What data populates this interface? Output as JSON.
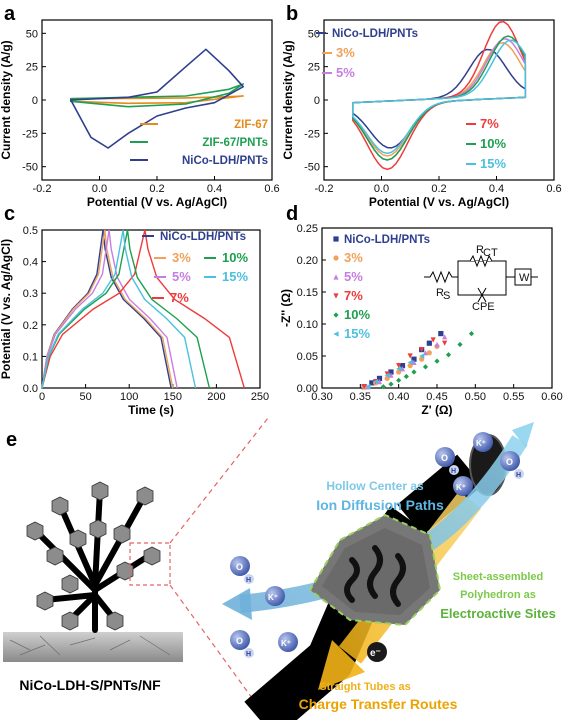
{
  "colors": {
    "navy": "#2f3f8f",
    "orange": "#f0a25a",
    "violet": "#c67ee0",
    "red": "#ee3b3b",
    "green": "#1ea050",
    "cyan": "#4cc0df",
    "zif": "#e58a1e"
  },
  "panels": {
    "a": {
      "label": "a",
      "xlabel": "Potential (V vs. Ag/AgCl)",
      "ylabel": "Current density (A/g)",
      "legend": [
        "ZIF-67",
        "ZIF-67/PNTs",
        "NiCo-LDH/PNTs"
      ]
    },
    "b": {
      "label": "b",
      "xlabel": "Potential (V vs. Ag/AgCl)",
      "ylabel": "Current density (A/g)",
      "legend": [
        "NiCo-LDH/PNTs",
        "3%",
        "5%",
        "7%",
        "10%",
        "15%"
      ]
    },
    "c": {
      "label": "c",
      "xlabel": "Time (s)",
      "ylabel": "Potential (V vs. Ag/AgCl)",
      "legend": [
        "NiCo-LDH/PNTs",
        "3%",
        "10%",
        "5%",
        "15%",
        "7%"
      ]
    },
    "d": {
      "label": "d",
      "xlabel": "Z' (Ω)",
      "ylabel": "-Z'' (Ω)",
      "legend": [
        "NiCo-LDH/PNTs",
        "3%",
        "5%",
        "7%",
        "10%",
        "15%"
      ],
      "circuit": {
        "rs": "R",
        "rs_sub": "S",
        "rct": "R",
        "rct_sub": "CT",
        "cpe": "CPE",
        "w": "W"
      }
    }
  },
  "chart_data": [
    {
      "type": "line",
      "title": "",
      "xlabel": "Potential (V vs. Ag/AgCl)",
      "ylabel": "Current density (A/g)",
      "xlim": [
        -0.2,
        0.6
      ],
      "ylim": [
        -60,
        60
      ],
      "xticks": [
        "-0.2",
        "0.0",
        "0.2",
        "0.4",
        "0.6"
      ],
      "yticks": [
        "-50",
        "-25",
        "0",
        "25",
        "50"
      ],
      "series": [
        {
          "name": "ZIF-67",
          "color": "#e58a1e",
          "anodic": [
            [
              -0.1,
              1
            ],
            [
              0.1,
              1.2
            ],
            [
              0.3,
              1.6
            ],
            [
              0.45,
              2.5
            ],
            [
              0.5,
              3
            ]
          ],
          "cathodic": [
            [
              0.5,
              3
            ],
            [
              0.3,
              -2
            ],
            [
              0.1,
              -2.5
            ],
            [
              -0.1,
              -1
            ]
          ]
        },
        {
          "name": "ZIF-67/PNTs",
          "color": "#1ea050",
          "anodic": [
            [
              -0.1,
              1
            ],
            [
              0.1,
              2
            ],
            [
              0.3,
              3
            ],
            [
              0.45,
              8
            ],
            [
              0.5,
              12
            ]
          ],
          "cathodic": [
            [
              0.5,
              12
            ],
            [
              0.45,
              5
            ],
            [
              0.3,
              -3
            ],
            [
              0.1,
              -5
            ],
            [
              -0.1,
              -1
            ]
          ]
        },
        {
          "name": "NiCo-LDH/PNTs",
          "color": "#2f3f8f",
          "anodic": [
            [
              -0.1,
              0
            ],
            [
              0.1,
              2
            ],
            [
              0.2,
              6
            ],
            [
              0.3,
              25
            ],
            [
              0.37,
              38
            ],
            [
              0.45,
              22
            ],
            [
              0.5,
              10
            ]
          ],
          "cathodic": [
            [
              0.5,
              10
            ],
            [
              0.4,
              -2
            ],
            [
              0.3,
              -6
            ],
            [
              0.2,
              -12
            ],
            [
              0.1,
              -25
            ],
            [
              0.03,
              -36
            ],
            [
              -0.03,
              -28
            ],
            [
              -0.1,
              0
            ]
          ]
        }
      ]
    },
    {
      "type": "line",
      "title": "",
      "xlabel": "Potential (V vs. Ag/AgCl)",
      "ylabel": "Current density (A/g)",
      "xlim": [
        -0.2,
        0.6
      ],
      "ylim": [
        -60,
        60
      ],
      "xticks": [
        "-0.2",
        "0.0",
        "0.2",
        "0.4",
        "0.6"
      ],
      "yticks": [
        "-50",
        "-25",
        "0",
        "25",
        "50"
      ],
      "series": [
        {
          "name": "NiCo-LDH/PNTs",
          "color": "#2f3f8f",
          "peak": [
            0.37,
            38
          ],
          "valley": [
            0.03,
            -36
          ]
        },
        {
          "name": "3%",
          "color": "#f0a25a",
          "peak": [
            0.42,
            43
          ],
          "valley": [
            0.02,
            -42
          ]
        },
        {
          "name": "5%",
          "color": "#c67ee0",
          "peak": [
            0.43,
            46
          ],
          "valley": [
            0.02,
            -45
          ]
        },
        {
          "name": "7%",
          "color": "#ee3b3b",
          "peak": [
            0.42,
            59
          ],
          "valley": [
            0.02,
            -52
          ]
        },
        {
          "name": "10%",
          "color": "#1ea050",
          "peak": [
            0.44,
            48
          ],
          "valley": [
            0.02,
            -45
          ]
        },
        {
          "name": "15%",
          "color": "#4cc0df",
          "peak": [
            0.45,
            45
          ],
          "valley": [
            0.02,
            -40
          ]
        }
      ]
    },
    {
      "type": "line",
      "title": "",
      "xlabel": "Time (s)",
      "ylabel": "Potential (V vs. Ag/AgCl)",
      "xlim": [
        0,
        250
      ],
      "ylim": [
        0,
        0.5
      ],
      "xticks": [
        "0",
        "50",
        "100",
        "150",
        "200",
        "250"
      ],
      "yticks": [
        "0.0",
        "0.1",
        "0.2",
        "0.3",
        "0.4",
        "0.5"
      ],
      "series": [
        {
          "name": "NiCo-LDH/PNTs",
          "color": "#2f3f8f",
          "charge_end": 70,
          "discharge_end": 148
        },
        {
          "name": "3%",
          "color": "#f0a25a",
          "charge_end": 72,
          "discharge_end": 150
        },
        {
          "name": "5%",
          "color": "#c67ee0",
          "charge_end": 77,
          "discharge_end": 155
        },
        {
          "name": "7%",
          "color": "#ee3b3b",
          "charge_end": 118,
          "discharge_end": 232
        },
        {
          "name": "10%",
          "color": "#1ea050",
          "charge_end": 98,
          "discharge_end": 192
        },
        {
          "name": "15%",
          "color": "#4cc0df",
          "charge_end": 93,
          "discharge_end": 176
        }
      ]
    },
    {
      "type": "scatter",
      "title": "",
      "xlabel": "Z' (Ω)",
      "ylabel": "-Z'' (Ω)",
      "xlim": [
        0.3,
        0.6
      ],
      "ylim": [
        0,
        0.25
      ],
      "xticks": [
        "0.30",
        "0.35",
        "0.40",
        "0.45",
        "0.50",
        "0.55",
        "0.60"
      ],
      "yticks": [
        "0.00",
        "0.05",
        "0.10",
        "0.15",
        "0.20",
        "0.25"
      ],
      "series": [
        {
          "name": "NiCo-LDH/PNTs",
          "color": "#2f3f8f",
          "marker": "square",
          "points": [
            [
              0.355,
              0.002
            ],
            [
              0.365,
              0.008
            ],
            [
              0.375,
              0.015
            ],
            [
              0.39,
              0.025
            ],
            [
              0.405,
              0.035
            ],
            [
              0.42,
              0.045
            ],
            [
              0.43,
              0.06
            ],
            [
              0.44,
              0.07
            ],
            [
              0.455,
              0.085
            ]
          ]
        },
        {
          "name": "3%",
          "color": "#f0a25a",
          "marker": "circle",
          "points": [
            [
              0.355,
              0.002
            ],
            [
              0.37,
              0.008
            ],
            [
              0.385,
              0.015
            ],
            [
              0.4,
              0.025
            ],
            [
              0.415,
              0.035
            ],
            [
              0.43,
              0.045
            ],
            [
              0.44,
              0.055
            ],
            [
              0.45,
              0.065
            ]
          ]
        },
        {
          "name": "5%",
          "color": "#c67ee0",
          "marker": "triangle-up",
          "points": [
            [
              0.36,
              0.002
            ],
            [
              0.375,
              0.01
            ],
            [
              0.39,
              0.02
            ],
            [
              0.405,
              0.03
            ],
            [
              0.42,
              0.04
            ],
            [
              0.435,
              0.055
            ],
            [
              0.45,
              0.068
            ],
            [
              0.46,
              0.08
            ]
          ]
        },
        {
          "name": "7%",
          "color": "#ee3b3b",
          "marker": "triangle-down",
          "points": [
            [
              0.355,
              0.002
            ],
            [
              0.37,
              0.01
            ],
            [
              0.385,
              0.022
            ],
            [
              0.4,
              0.035
            ],
            [
              0.415,
              0.05
            ],
            [
              0.43,
              0.06
            ],
            [
              0.445,
              0.075
            ],
            [
              0.46,
              0.07
            ]
          ]
        },
        {
          "name": "10%",
          "color": "#1ea050",
          "marker": "diamond",
          "points": [
            [
              0.38,
              0.002
            ],
            [
              0.39,
              0.006
            ],
            [
              0.4,
              0.012
            ],
            [
              0.41,
              0.018
            ],
            [
              0.42,
              0.025
            ],
            [
              0.435,
              0.033
            ],
            [
              0.45,
              0.042
            ],
            [
              0.465,
              0.052
            ],
            [
              0.48,
              0.068
            ],
            [
              0.495,
              0.085
            ]
          ]
        },
        {
          "name": "15%",
          "color": "#4cc0df",
          "marker": "triangle-left",
          "points": [
            [
              0.36,
              0.002
            ],
            [
              0.37,
              0.01
            ],
            [
              0.385,
              0.02
            ],
            [
              0.4,
              0.03
            ],
            [
              0.415,
              0.04
            ],
            [
              0.43,
              0.05
            ]
          ]
        }
      ]
    }
  ],
  "schematic": {
    "label": "e",
    "caption": "NiCo-LDH-S/PNTs/NF",
    "hollow_line1": "Hollow Center as",
    "hollow_line2": "Ion Diffusion Paths",
    "sheet_line1": "Sheet-assembled",
    "sheet_line2": "Polyhedron as",
    "sheet_line3": "Electroactive Sites",
    "tube_line1": "Straight Tubes as",
    "tube_line2": "Charge Transfer Routes",
    "electron": "e⁻",
    "ion_k": "K⁺",
    "ion_o": "O",
    "ion_h": "H"
  }
}
